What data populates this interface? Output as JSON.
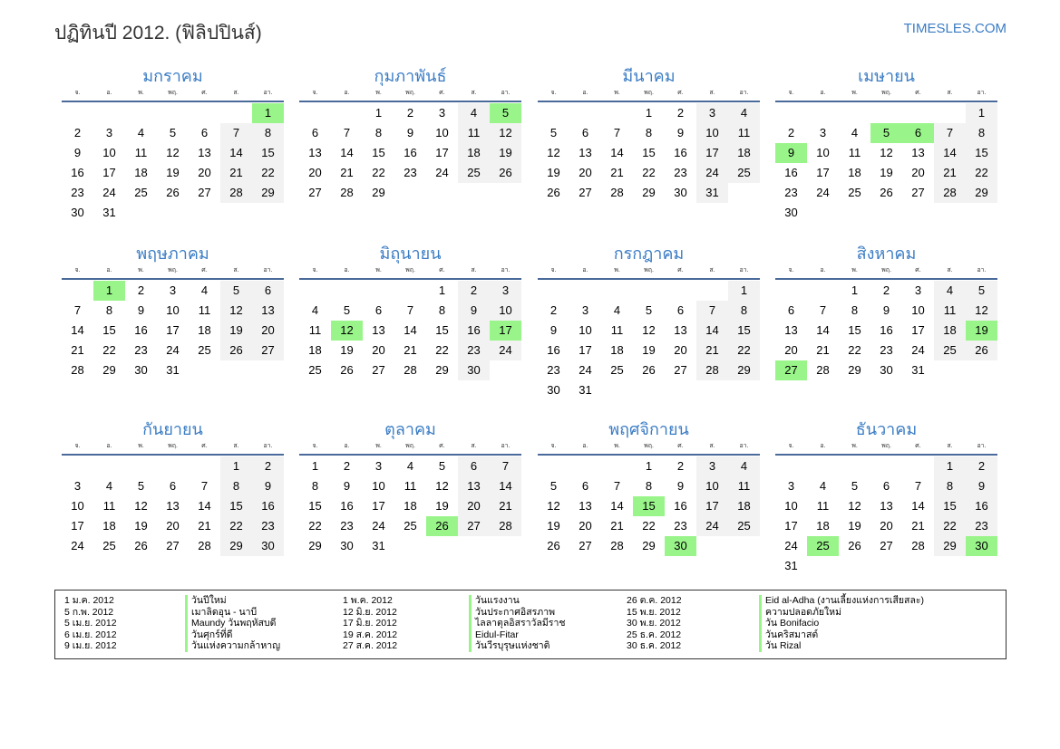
{
  "header": {
    "title": "ปฏิทินปี 2012. (ฟิลิปปินส์)",
    "site": "TIMESLES.COM"
  },
  "year": 2012,
  "weekdays": [
    "จ.",
    "อ.",
    "พ.",
    "พฤ.",
    "ศ.",
    "ส.",
    "อา."
  ],
  "colors": {
    "accent": "#3a7cc4",
    "holiday": "#99f58a",
    "weekend": "#f2f2f2"
  },
  "months": [
    {
      "name": "มกราคม",
      "holidays": [
        1
      ]
    },
    {
      "name": "กุมภาพันธ์",
      "holidays": [
        5
      ]
    },
    {
      "name": "มีนาคม",
      "holidays": []
    },
    {
      "name": "เมษายน",
      "holidays": [
        5,
        6,
        9
      ]
    },
    {
      "name": "พฤษภาคม",
      "holidays": [
        1
      ]
    },
    {
      "name": "มิถุนายน",
      "holidays": [
        12,
        17
      ]
    },
    {
      "name": "กรกฎาคม",
      "holidays": []
    },
    {
      "name": "สิงหาคม",
      "holidays": [
        19,
        27
      ]
    },
    {
      "name": "กันยายน",
      "holidays": []
    },
    {
      "name": "ตุลาคม",
      "holidays": [
        26
      ]
    },
    {
      "name": "พฤศจิกายน",
      "holidays": [
        15,
        30
      ]
    },
    {
      "name": "ธันวาคม",
      "holidays": [
        25,
        30
      ]
    }
  ],
  "legend": [
    [
      {
        "date": "1 ม.ค. 2012",
        "name": "วันปีใหม่"
      },
      {
        "date": "5 ก.พ. 2012",
        "name": "เมาลิดอุน - นาบี"
      },
      {
        "date": "5 เม.ย. 2012",
        "name": "Maundy วันพฤหัสบดี"
      },
      {
        "date": "6 เม.ย. 2012",
        "name": "วันศุกร์ที่ดี"
      },
      {
        "date": "9 เม.ย. 2012",
        "name": "วันแห่งความกล้าหาญ"
      }
    ],
    [
      {
        "date": "1 พ.ค. 2012",
        "name": "วันแรงงาน"
      },
      {
        "date": "12 มิ.ย. 2012",
        "name": "วันประกาศอิสรภาพ"
      },
      {
        "date": "17 มิ.ย. 2012",
        "name": "ไลลาตุลอิสราวัลมีราช"
      },
      {
        "date": "19 ส.ค. 2012",
        "name": "Eidul-Fitar"
      },
      {
        "date": "27 ส.ค. 2012",
        "name": "วันวีรบุรุษแห่งชาติ"
      }
    ],
    [
      {
        "date": "26 ต.ค. 2012",
        "name": "Eid al-Adha (งานเลี้ยงแห่งการเสียสละ)"
      },
      {
        "date": "15 พ.ย. 2012",
        "name": "ความปลอดภัยใหม่"
      },
      {
        "date": "30 พ.ย. 2012",
        "name": "วัน Bonifacio"
      },
      {
        "date": "25 ธ.ค. 2012",
        "name": "วันคริสมาสต์"
      },
      {
        "date": "30 ธ.ค. 2012",
        "name": "วัน Rizal"
      }
    ]
  ]
}
